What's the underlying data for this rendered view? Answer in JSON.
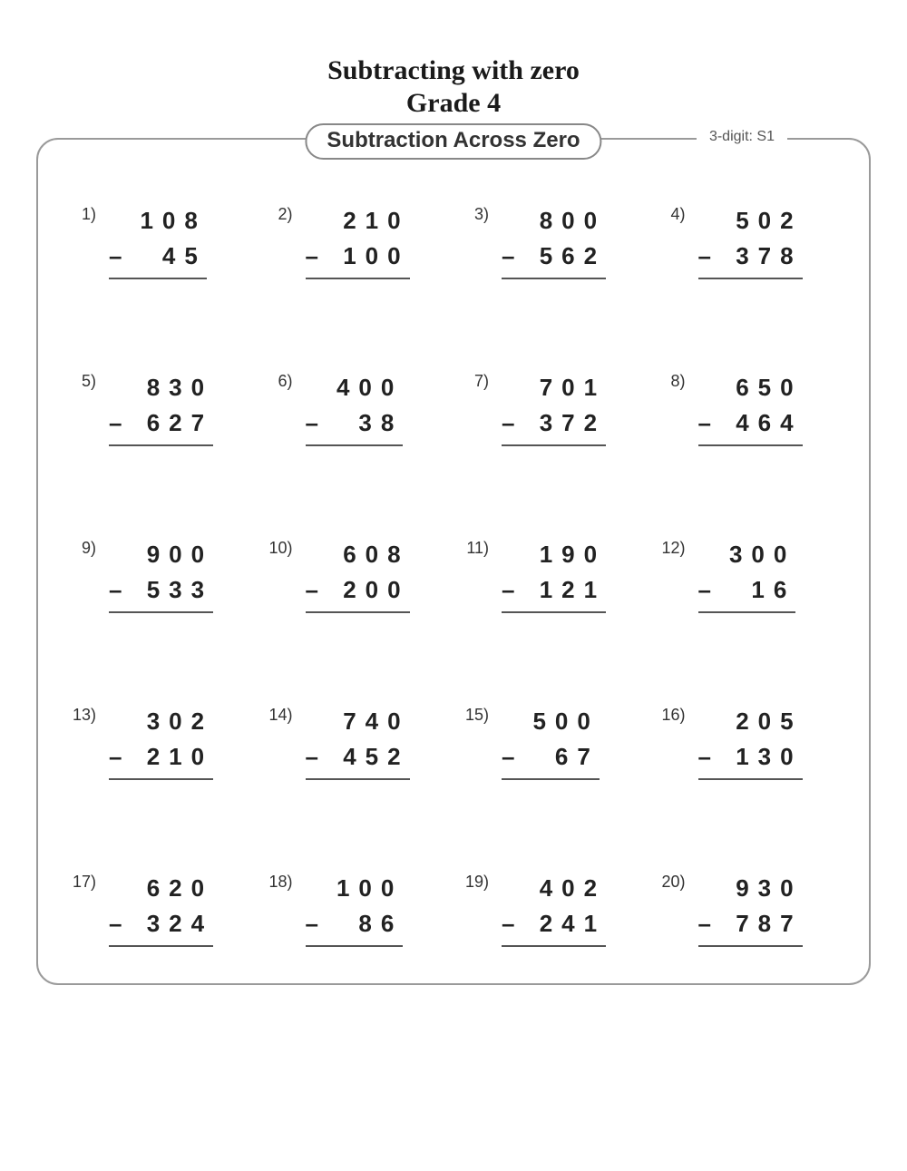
{
  "title_line1": "Subtracting with zero",
  "title_line2": "Grade 4",
  "pill_label": "Subtraction Across Zero",
  "corner_label": "3-digit: S1",
  "text_color": "#222222",
  "border_color": "#9a9a9a",
  "background_color": "#ffffff",
  "digit_fontsize": 26,
  "label_fontsize": 18,
  "title_fontsize": 30,
  "problems": [
    {
      "n": "1)",
      "minuend": "108",
      "subtrahend": "45"
    },
    {
      "n": "2)",
      "minuend": "210",
      "subtrahend": "100"
    },
    {
      "n": "3)",
      "minuend": "800",
      "subtrahend": "562"
    },
    {
      "n": "4)",
      "minuend": "502",
      "subtrahend": "378"
    },
    {
      "n": "5)",
      "minuend": "830",
      "subtrahend": "627"
    },
    {
      "n": "6)",
      "minuend": "400",
      "subtrahend": "38"
    },
    {
      "n": "7)",
      "minuend": "701",
      "subtrahend": "372"
    },
    {
      "n": "8)",
      "minuend": "650",
      "subtrahend": "464"
    },
    {
      "n": "9)",
      "minuend": "900",
      "subtrahend": "533"
    },
    {
      "n": "10)",
      "minuend": "608",
      "subtrahend": "200"
    },
    {
      "n": "11)",
      "minuend": "190",
      "subtrahend": "121"
    },
    {
      "n": "12)",
      "minuend": "300",
      "subtrahend": "16"
    },
    {
      "n": "13)",
      "minuend": "302",
      "subtrahend": "210"
    },
    {
      "n": "14)",
      "minuend": "740",
      "subtrahend": "452"
    },
    {
      "n": "15)",
      "minuend": "500",
      "subtrahend": "67"
    },
    {
      "n": "16)",
      "minuend": "205",
      "subtrahend": "130"
    },
    {
      "n": "17)",
      "minuend": "620",
      "subtrahend": "324"
    },
    {
      "n": "18)",
      "minuend": "100",
      "subtrahend": "86"
    },
    {
      "n": "19)",
      "minuend": "402",
      "subtrahend": "241"
    },
    {
      "n": "20)",
      "minuend": "930",
      "subtrahend": "787"
    }
  ]
}
